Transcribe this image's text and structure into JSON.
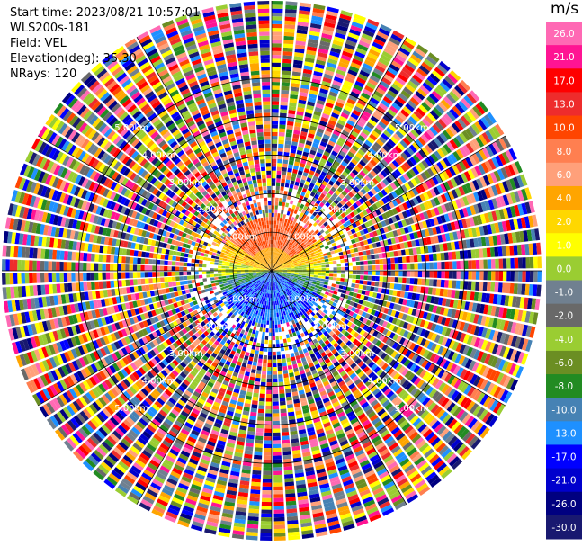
{
  "header": {
    "start_time": "Start time: 2023/08/21 10:57:01",
    "instrument": "WLS200s-181",
    "field": "Field: VEL",
    "elevation": "Elevation(deg): 35.30",
    "nrays": "NRays: 120"
  },
  "colorbar": {
    "unit": "m/s",
    "ticks": [
      "26.0",
      "21.0",
      "17.0",
      "13.0",
      "10.0",
      "8.0",
      "6.0",
      "4.0",
      "2.0",
      "1.0",
      "0.0",
      "-1.0",
      "-2.0",
      "-4.0",
      "-6.0",
      "-8.0",
      "-10.0",
      "-13.0",
      "-17.0",
      "-21.0",
      "-26.0",
      "-30.0"
    ],
    "colors": [
      "#ff69b4",
      "#ff1493",
      "#ff0000",
      "#ee2c2c",
      "#ff4500",
      "#ff7f50",
      "#ffa07a",
      "#ffa500",
      "#ffd700",
      "#ffff00",
      "#9acd32",
      "#708090",
      "#696969",
      "#9acd32",
      "#6b8e23",
      "#228b22",
      "#4682b4",
      "#1e90ff",
      "#0000ff",
      "#0000cd",
      "#000080",
      "#191970"
    ]
  },
  "chart_data": {
    "type": "polar_ppi",
    "field": "VEL",
    "unit": "m/s",
    "n_rays": 120,
    "range_rings_km": [
      1.0,
      2.0,
      3.0,
      4.0,
      5.0
    ],
    "ring_labels": [
      "1.00km",
      "2.00km",
      "3.00km",
      "4.00km",
      "5.00km"
    ],
    "max_range_km": 7.0,
    "color_scale": [
      -30,
      26
    ],
    "description_of_pattern": "near-center: positive velocities (orange/red) to the north, negative (blue) to the south; beyond about 1.5 km mostly random noise colors"
  }
}
